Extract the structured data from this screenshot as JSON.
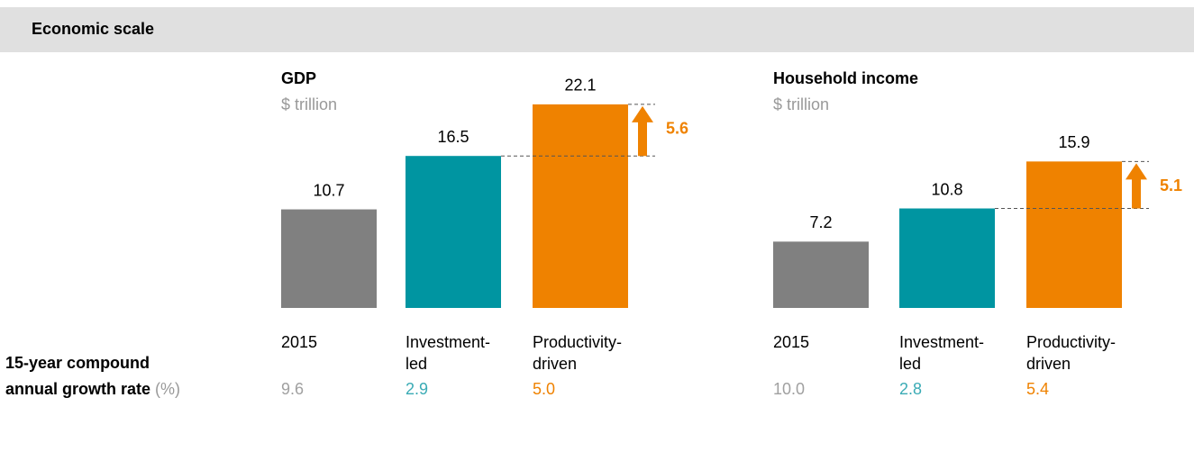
{
  "header": "Economic scale",
  "growth_label": {
    "main": "15-year compound annual growth rate",
    "unit": "(%)"
  },
  "chart_data": [
    {
      "type": "bar",
      "title": "GDP",
      "subtitle": "$ trillion",
      "categories": [
        "2015",
        "Investment-led",
        "Productivity-driven"
      ],
      "values": [
        10.7,
        16.5,
        22.1
      ],
      "colors": [
        "#808080",
        "#0095a1",
        "#ef8200"
      ],
      "difference": 5.6,
      "growth_rates": {
        "values": [
          9.6,
          2.9,
          5
        ],
        "value_labels": [
          "9.6",
          "2.9",
          "5.0"
        ],
        "colors": [
          "#a0a0a0",
          "#3aabb5",
          "#ef8200"
        ]
      }
    },
    {
      "type": "bar",
      "title": "Household income",
      "subtitle": "$ trillion",
      "categories": [
        "2015",
        "Investment-led",
        "Productivity-driven"
      ],
      "values": [
        7.2,
        10.8,
        15.9
      ],
      "colors": [
        "#808080",
        "#0095a1",
        "#ef8200"
      ],
      "difference": 5.1,
      "growth_rates": {
        "values": [
          10,
          2.8,
          5.4
        ],
        "value_labels": [
          "10.0",
          "2.8",
          "5.4"
        ],
        "colors": [
          "#a0a0a0",
          "#3aabb5",
          "#ef8200"
        ]
      }
    }
  ]
}
